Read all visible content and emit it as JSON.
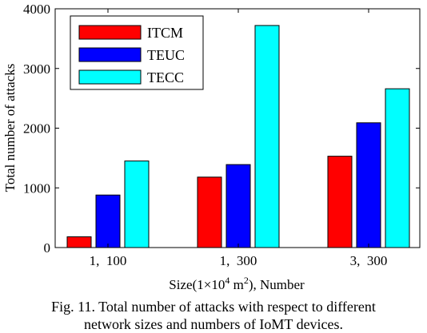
{
  "chart_data": {
    "type": "bar",
    "categories": [
      "1,  100",
      "1,  300",
      "3,  300"
    ],
    "series": [
      {
        "name": "ITCM",
        "values": [
          180,
          1180,
          1530
        ],
        "color": "#ff0000"
      },
      {
        "name": "TEUC",
        "values": [
          880,
          1390,
          2090
        ],
        "color": "#0000ff"
      },
      {
        "name": "TECC",
        "values": [
          1450,
          3720,
          2660
        ],
        "color": "#00ffff"
      }
    ],
    "yticks": [
      "0",
      "1000",
      "2000",
      "3000",
      "4000"
    ],
    "ylim": [
      0,
      4000
    ],
    "ylabel": "Total number of attacks",
    "xlabel": {
      "pre": "Size(1×10",
      "sup": "4",
      "mid": " m",
      "sup2": "2",
      "post": "), Number"
    },
    "legend_position": "top-left",
    "grid": false
  },
  "caption": {
    "line1": "Fig. 11. Total number of attacks with respect to different",
    "line2": "network sizes and numbers of IoMT devices."
  }
}
